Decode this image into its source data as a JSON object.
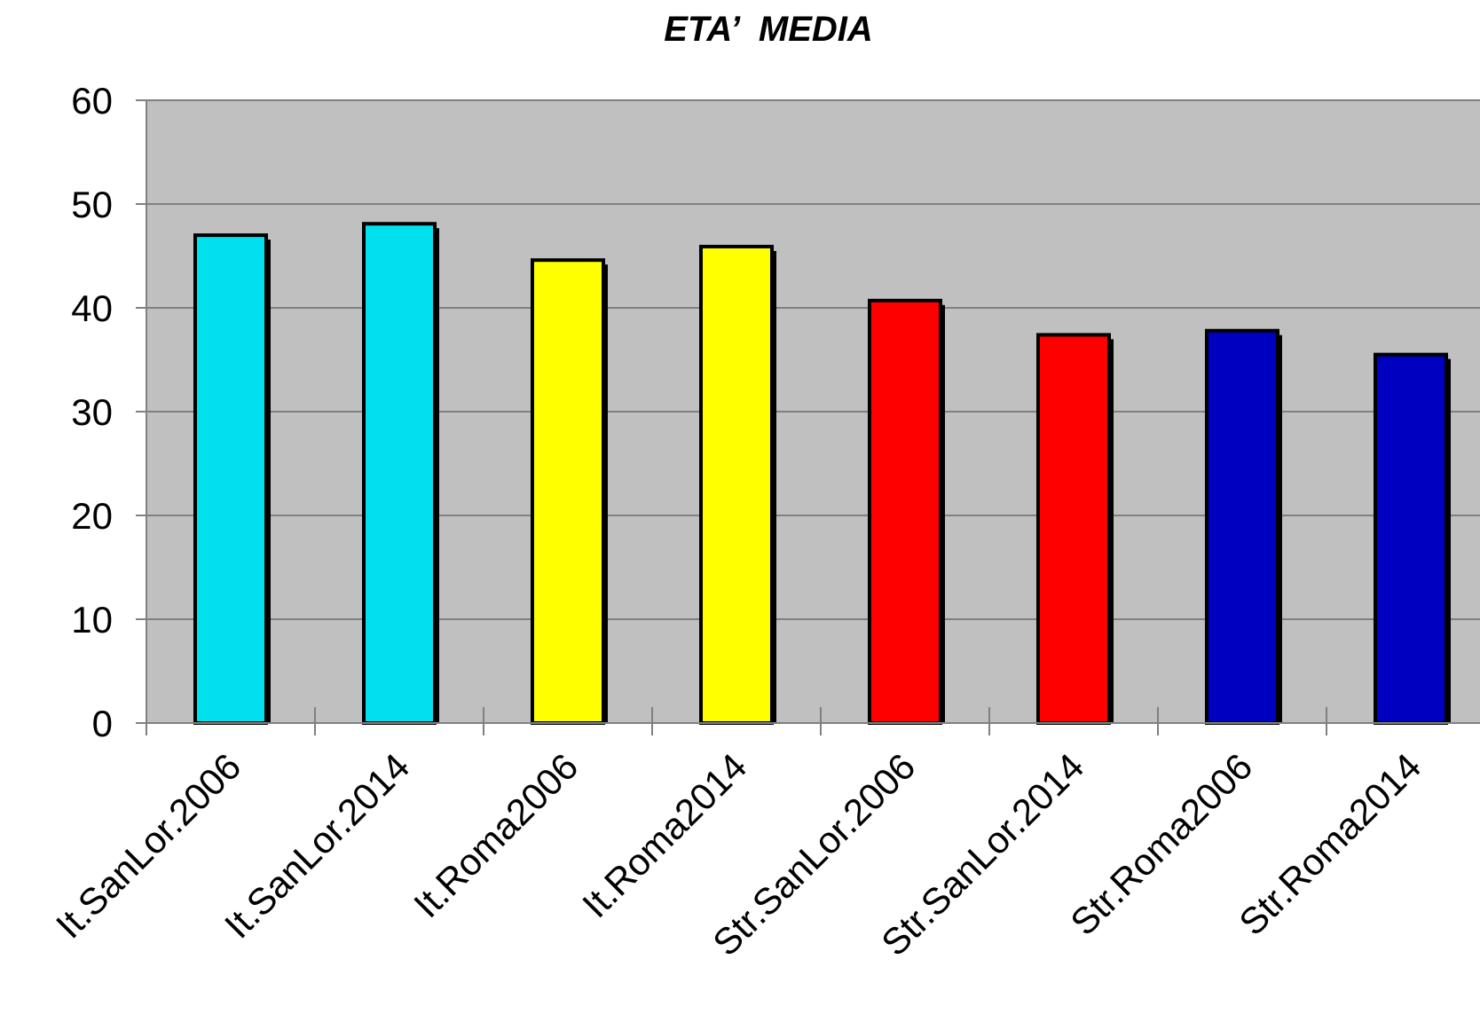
{
  "chart_data": {
    "type": "bar",
    "title": "ETA’  MEDIA",
    "xlabel": "",
    "ylabel": "",
    "ylim": [
      0,
      60
    ],
    "yticks": [
      0,
      10,
      20,
      30,
      40,
      50,
      60
    ],
    "grid": true,
    "legend": "none",
    "categories": [
      "It.SanLor.2006",
      "It.SanLor.2014",
      "It.Roma2006",
      "It.Roma2014",
      "Str.SanLor.2006",
      "Str.SanLor.2014",
      "Str.Roma2006",
      "Str.Roma2014"
    ],
    "values": [
      47.0,
      48.1,
      44.6,
      45.9,
      40.7,
      37.4,
      37.8,
      35.5
    ],
    "colors": [
      "#00e0ee",
      "#00e0ee",
      "#ffff00",
      "#ffff00",
      "#ff0000",
      "#ff0000",
      "#0000c0",
      "#0000c0"
    ],
    "plot_background": "#c0c0c0",
    "gridline_color": "#808080"
  }
}
